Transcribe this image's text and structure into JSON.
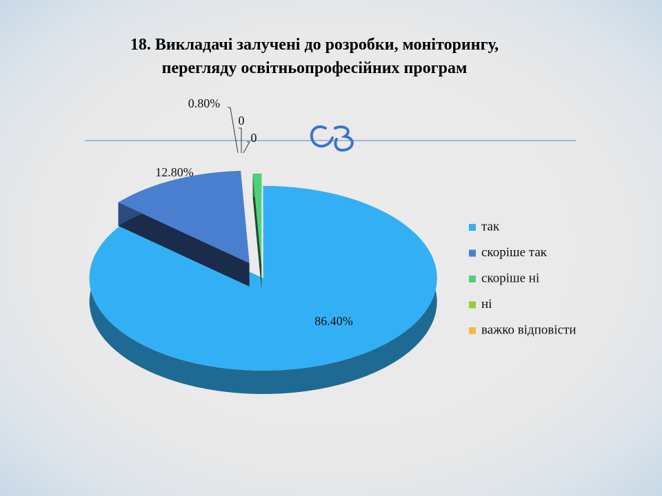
{
  "chart_data": {
    "type": "pie",
    "title": "18. Викладачі залучені до розробки, моніторингу,",
    "subtitle": "перегляду освітньопрофесійних програм",
    "categories": [
      "так",
      "скоріше так",
      "скоріше ні",
      "ні",
      "важко відповісти"
    ],
    "values": [
      86.4,
      12.8,
      0.8,
      0,
      0
    ],
    "value_labels": [
      "86.40%",
      "12.80%",
      "0.80%",
      "0",
      "0"
    ],
    "colors": [
      "#33b0f5",
      "#4a7fd0",
      "#4fd07a",
      "#9acd32",
      "#f5b942"
    ],
    "legend": "right"
  }
}
